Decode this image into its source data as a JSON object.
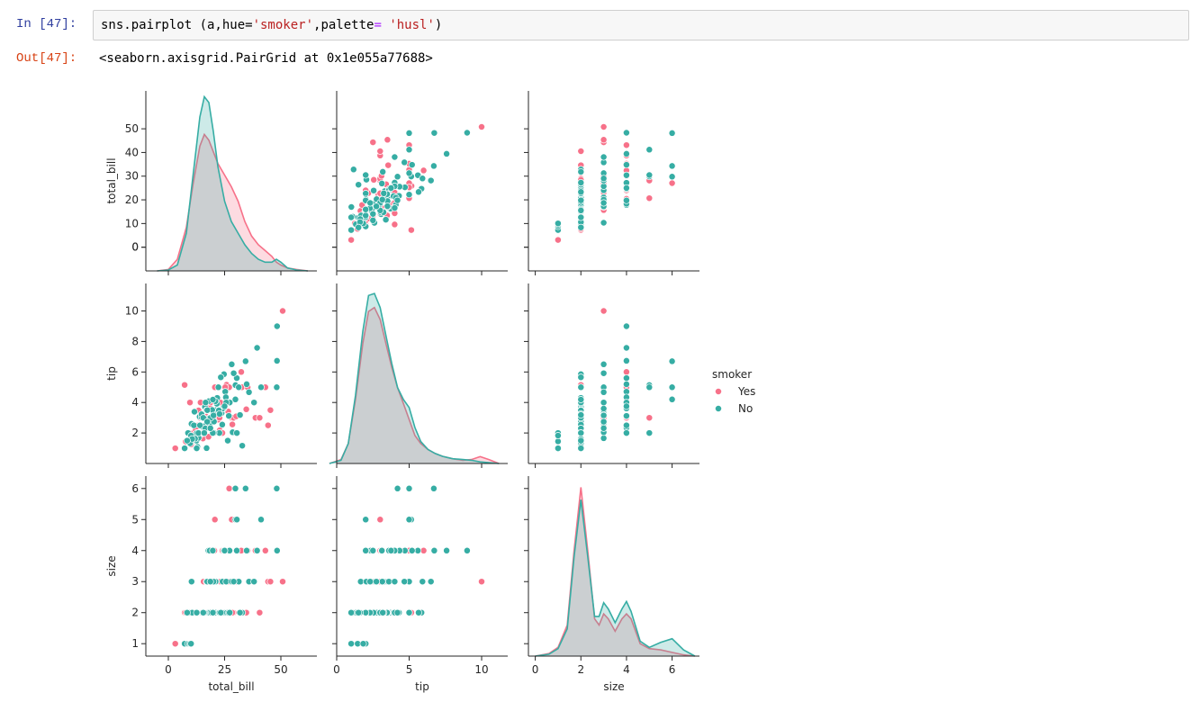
{
  "input_prompt": "In [47]:",
  "output_prompt": "Out[47]:",
  "code": {
    "prefix": "sns.pairplot (a,hue=",
    "arg1": "'smoker'",
    "mid": ",palette",
    "eq": "=",
    "space": " ",
    "arg2": "'husl'",
    "suffix": ")"
  },
  "output_text": "<seaborn.axisgrid.PairGrid at 0x1e055a77688>",
  "colors": {
    "Yes": "#f77189",
    "No": "#36ada4"
  },
  "chart_data": {
    "type": "scatter",
    "hue": "smoker",
    "variables": [
      "total_bill",
      "tip",
      "size"
    ],
    "axes": {
      "total_bill": {
        "label": "total_bill",
        "lim": [
          -10,
          66
        ],
        "ticks": [
          0,
          10,
          20,
          30,
          40,
          50
        ],
        "xticks": [
          0,
          25,
          50
        ]
      },
      "tip": {
        "label": "tip",
        "lim": [
          0,
          11.8
        ],
        "ticks": [
          2,
          4,
          6,
          8,
          10
        ],
        "xticks": [
          0,
          5,
          10
        ]
      },
      "size": {
        "label": "size",
        "lim": [
          0.6,
          6.4
        ],
        "ticks": [
          1,
          2,
          3,
          4,
          5,
          6
        ],
        "xticks": [
          0,
          2,
          4,
          6
        ],
        "xlim": [
          -0.3,
          7.2
        ]
      }
    },
    "kde_ylim": {
      "total_bill": [
        0,
        0.062
      ],
      "tip": [
        0,
        0.45
      ],
      "size": [
        0,
        1.45
      ]
    },
    "legend": {
      "title": "smoker",
      "placement": "right",
      "entries": [
        "Yes",
        "No"
      ]
    },
    "series": [
      {
        "name": "Yes",
        "points": [
          [
            3.07,
            1.0,
            1
          ],
          [
            7.25,
            5.15,
            2
          ],
          [
            10.07,
            1.25,
            2
          ],
          [
            10.33,
            2.0,
            2
          ],
          [
            12.02,
            1.97,
            2
          ],
          [
            13.42,
            3.48,
            2
          ],
          [
            14.31,
            4.0,
            2
          ],
          [
            14.0,
            3.0,
            2
          ],
          [
            15.01,
            2.09,
            2
          ],
          [
            15.36,
            1.64,
            2
          ],
          [
            16.47,
            3.23,
            3
          ],
          [
            16.93,
            3.07,
            2
          ],
          [
            17.29,
            2.71,
            2
          ],
          [
            17.46,
            2.54,
            2
          ],
          [
            18.24,
            3.76,
            2
          ],
          [
            19.44,
            3.0,
            2
          ],
          [
            20.65,
            3.35,
            3
          ],
          [
            20.69,
            5.0,
            5
          ],
          [
            20.45,
            3.0,
            4
          ],
          [
            22.82,
            2.18,
            3
          ],
          [
            23.1,
            4.0,
            3
          ],
          [
            24.52,
            3.48,
            3
          ],
          [
            25.89,
            5.16,
            4
          ],
          [
            26.86,
            3.14,
            2
          ],
          [
            27.05,
            5.0,
            6
          ],
          [
            28.15,
            3.0,
            5
          ],
          [
            28.97,
            3.0,
            2
          ],
          [
            30.06,
            2.0,
            3
          ],
          [
            32.4,
            6.0,
            4
          ],
          [
            32.68,
            5.0,
            2
          ],
          [
            34.63,
            3.55,
            2
          ],
          [
            35.26,
            5.0,
            4
          ],
          [
            38.73,
            3.0,
            4
          ],
          [
            40.55,
            3.0,
            2
          ],
          [
            43.11,
            5.0,
            4
          ],
          [
            44.3,
            2.5,
            3
          ],
          [
            45.35,
            3.5,
            3
          ],
          [
            50.81,
            10.0,
            3
          ],
          [
            11.02,
            1.98,
            2
          ],
          [
            13.27,
            2.5,
            2
          ],
          [
            22.12,
            2.88,
            2
          ],
          [
            24.01,
            2.0,
            4
          ],
          [
            21.01,
            3.0,
            2
          ],
          [
            18.71,
            4.0,
            3
          ],
          [
            12.16,
            2.2,
            2
          ],
          [
            9.6,
            4.0,
            2
          ],
          [
            15.69,
            3.0,
            3
          ],
          [
            26.59,
            3.41,
            3
          ],
          [
            28.44,
            2.56,
            2
          ],
          [
            30.14,
            3.09,
            4
          ],
          [
            16.0,
            2.0,
            2
          ],
          [
            22.76,
            3.0,
            2
          ],
          [
            17.82,
            1.75,
            2
          ],
          [
            13.0,
            2.0,
            2
          ],
          [
            7.74,
            1.44,
            2
          ],
          [
            25.28,
            5.0,
            2
          ]
        ]
      },
      {
        "name": "No",
        "points": [
          [
            7.25,
            1.0,
            1
          ],
          [
            8.77,
            2.0,
            1
          ],
          [
            9.55,
            1.45,
            1
          ],
          [
            10.34,
            1.66,
            3
          ],
          [
            10.29,
            2.6,
            2
          ],
          [
            11.35,
            2.5,
            2
          ],
          [
            12.46,
            1.5,
            2
          ],
          [
            13.03,
            2.0,
            2
          ],
          [
            13.94,
            3.06,
            2
          ],
          [
            14.83,
            3.02,
            2
          ],
          [
            15.04,
            1.96,
            2
          ],
          [
            15.77,
            2.23,
            2
          ],
          [
            16.29,
            3.71,
            2
          ],
          [
            16.97,
            3.5,
            3
          ],
          [
            17.59,
            2.64,
            3
          ],
          [
            17.81,
            2.34,
            4
          ],
          [
            18.35,
            2.5,
            4
          ],
          [
            19.82,
            3.18,
            2
          ],
          [
            20.29,
            2.75,
            2
          ],
          [
            20.65,
            3.35,
            3
          ],
          [
            21.01,
            3.5,
            3
          ],
          [
            21.58,
            3.92,
            2
          ],
          [
            22.23,
            5.0,
            2
          ],
          [
            22.67,
            2.0,
            2
          ],
          [
            23.68,
            3.31,
            2
          ],
          [
            24.59,
            3.61,
            4
          ],
          [
            25.29,
            4.71,
            4
          ],
          [
            25.56,
            4.34,
            4
          ],
          [
            26.41,
            1.5,
            2
          ],
          [
            26.88,
            3.12,
            4
          ],
          [
            27.2,
            4.0,
            4
          ],
          [
            28.55,
            2.05,
            3
          ],
          [
            29.8,
            4.2,
            6
          ],
          [
            29.85,
            5.14,
            5
          ],
          [
            30.4,
            5.6,
            4
          ],
          [
            31.27,
            5.0,
            3
          ],
          [
            32.83,
            1.17,
            2
          ],
          [
            34.3,
            6.7,
            6
          ],
          [
            34.81,
            5.2,
            4
          ],
          [
            35.83,
            4.67,
            3
          ],
          [
            38.07,
            4.0,
            3
          ],
          [
            39.42,
            7.58,
            4
          ],
          [
            41.19,
            5.0,
            5
          ],
          [
            48.17,
            5.0,
            6
          ],
          [
            48.27,
            6.73,
            4
          ],
          [
            48.33,
            9.0,
            4
          ],
          [
            16.99,
            1.01,
            2
          ],
          [
            21.7,
            4.3,
            2
          ],
          [
            24.06,
            3.6,
            3
          ],
          [
            19.49,
            3.51,
            2
          ],
          [
            12.74,
            2.01,
            2
          ],
          [
            10.07,
            1.83,
            1
          ],
          [
            14.52,
            2.0,
            2
          ],
          [
            18.29,
            3.0,
            2
          ],
          [
            16.45,
            2.47,
            2
          ],
          [
            20.23,
            2.01,
            2
          ],
          [
            15.48,
            2.02,
            2
          ],
          [
            22.49,
            3.5,
            2
          ],
          [
            17.92,
            4.08,
            2
          ],
          [
            11.61,
            3.39,
            2
          ],
          [
            19.77,
            2.0,
            4
          ],
          [
            13.81,
            2.0,
            2
          ],
          [
            14.07,
            2.5,
            2
          ],
          [
            12.69,
            2.0,
            2
          ],
          [
            20.92,
            4.08,
            2
          ],
          [
            16.58,
            4.0,
            2
          ],
          [
            24.71,
            5.85,
            2
          ],
          [
            9.68,
            1.32,
            2
          ],
          [
            13.42,
            1.68,
            2
          ],
          [
            30.46,
            2.0,
            5
          ],
          [
            27.28,
            4.0,
            2
          ],
          [
            23.95,
            2.55,
            2
          ],
          [
            18.78,
            3.0,
            2
          ],
          [
            25.71,
            4.0,
            3
          ],
          [
            17.31,
            3.5,
            2
          ],
          [
            22.42,
            3.48,
            2
          ],
          [
            14.78,
            3.23,
            2
          ],
          [
            11.87,
            1.63,
            2
          ],
          [
            16.43,
            2.3,
            2
          ],
          [
            13.37,
            2.0,
            2
          ],
          [
            15.95,
            2.0,
            2
          ],
          [
            19.81,
            4.19,
            2
          ],
          [
            28.17,
            6.5,
            3
          ],
          [
            12.9,
            1.1,
            2
          ],
          [
            10.59,
            1.61,
            2
          ],
          [
            8.35,
            1.5,
            2
          ],
          [
            20.08,
            3.15,
            3
          ],
          [
            15.53,
            3.0,
            2
          ],
          [
            22.75,
            3.25,
            2
          ],
          [
            17.26,
            2.74,
            3
          ],
          [
            18.69,
            2.31,
            3
          ],
          [
            12.6,
            1.0,
            2
          ],
          [
            25.0,
            3.75,
            4
          ],
          [
            31.85,
            3.18,
            2
          ],
          [
            29.03,
            5.92,
            3
          ],
          [
            23.33,
            5.65,
            2
          ]
        ]
      }
    ],
    "kde": {
      "total_bill": {
        "x": [
          -5,
          0,
          4,
          8,
          11,
          14,
          16,
          18,
          20,
          22,
          25,
          28,
          31,
          34,
          37,
          40,
          43,
          46,
          48,
          50,
          53,
          57,
          62
        ],
        "Yes": [
          0.0,
          0.0005,
          0.004,
          0.015,
          0.03,
          0.043,
          0.047,
          0.045,
          0.041,
          0.037,
          0.033,
          0.029,
          0.024,
          0.017,
          0.012,
          0.009,
          0.007,
          0.005,
          0.003,
          0.002,
          0.001,
          0.0005,
          0.0
        ],
        "No": [
          0.0,
          0.0003,
          0.002,
          0.013,
          0.033,
          0.053,
          0.06,
          0.058,
          0.048,
          0.036,
          0.024,
          0.017,
          0.013,
          0.009,
          0.006,
          0.004,
          0.003,
          0.003,
          0.004,
          0.003,
          0.001,
          0.0003,
          0.0
        ]
      },
      "tip": {
        "x": [
          -0.5,
          0.3,
          0.8,
          1.3,
          1.8,
          2.2,
          2.6,
          3.0,
          3.4,
          3.8,
          4.2,
          4.6,
          5.0,
          5.4,
          5.8,
          6.3,
          6.8,
          7.3,
          8.0,
          8.7,
          9.3,
          9.9,
          10.5,
          11.2
        ],
        "Yes": [
          0.0,
          0.01,
          0.05,
          0.16,
          0.3,
          0.38,
          0.39,
          0.36,
          0.3,
          0.24,
          0.19,
          0.15,
          0.11,
          0.07,
          0.05,
          0.035,
          0.025,
          0.018,
          0.012,
          0.008,
          0.01,
          0.017,
          0.01,
          0.0
        ],
        "No": [
          0.0,
          0.008,
          0.05,
          0.17,
          0.33,
          0.42,
          0.425,
          0.39,
          0.32,
          0.25,
          0.19,
          0.16,
          0.14,
          0.09,
          0.055,
          0.035,
          0.025,
          0.018,
          0.012,
          0.01,
          0.008,
          0.004,
          0.002,
          0.0
        ]
      },
      "size": {
        "x": [
          0.0,
          0.6,
          1.0,
          1.4,
          1.7,
          2.0,
          2.3,
          2.6,
          2.8,
          3.0,
          3.2,
          3.5,
          3.8,
          4.0,
          4.2,
          4.6,
          5.0,
          5.5,
          6.0,
          6.5,
          7.0
        ],
        "Yes": [
          0.0,
          0.02,
          0.07,
          0.25,
          0.85,
          1.36,
          0.85,
          0.3,
          0.25,
          0.34,
          0.3,
          0.2,
          0.3,
          0.34,
          0.3,
          0.1,
          0.06,
          0.05,
          0.03,
          0.01,
          0.0
        ],
        "No": [
          0.0,
          0.015,
          0.06,
          0.22,
          0.8,
          1.26,
          0.8,
          0.32,
          0.32,
          0.43,
          0.38,
          0.27,
          0.38,
          0.44,
          0.36,
          0.12,
          0.07,
          0.11,
          0.14,
          0.05,
          0.0
        ]
      }
    }
  }
}
